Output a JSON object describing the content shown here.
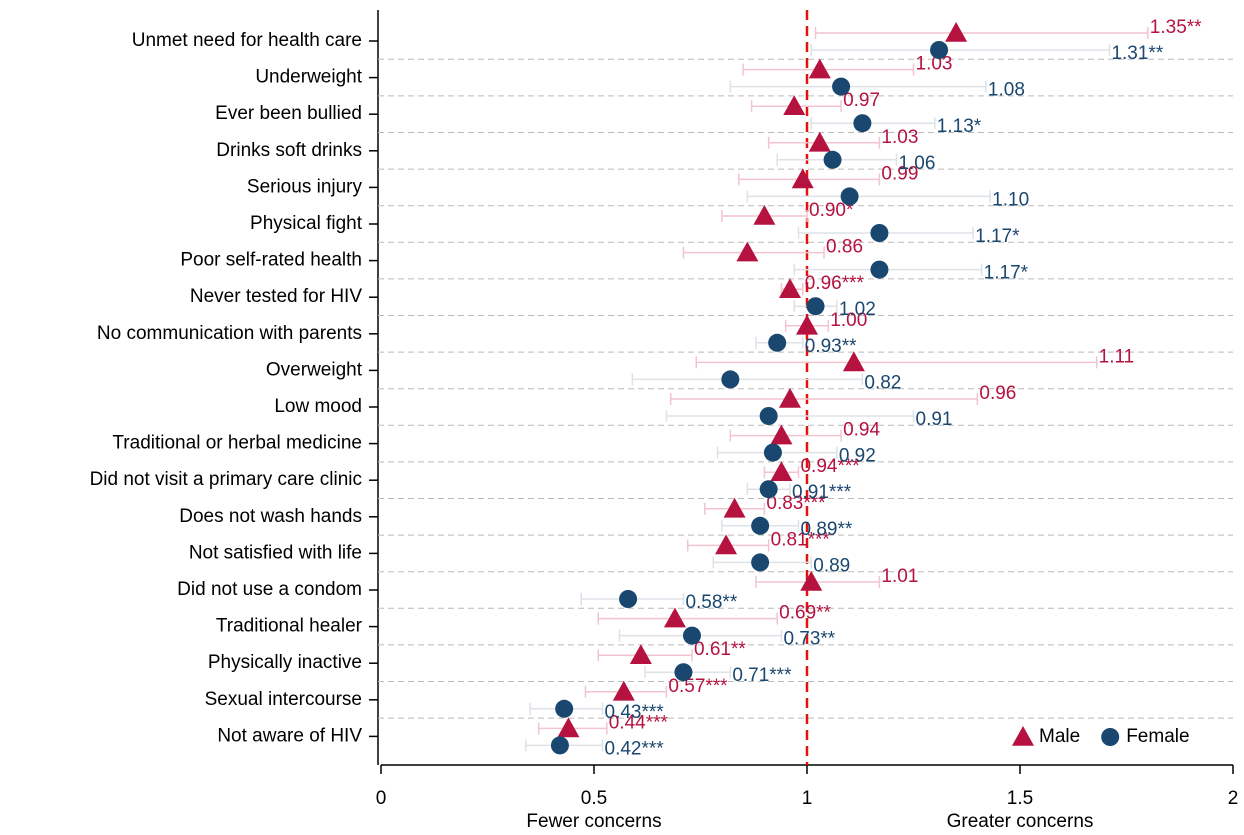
{
  "chart_data": {
    "type": "forest",
    "categories": [
      "Unmet need for health care",
      "Underweight",
      "Ever been bullied",
      "Drinks soft drinks",
      "Serious injury",
      "Physical fight",
      "Poor self-rated health",
      "Never tested for HIV",
      "No communication with parents",
      "Overweight",
      "Low mood",
      "Traditional or herbal medicine",
      "Did not visit a primary care clinic",
      "Does not wash hands",
      "Not satisfied with life",
      "Did not use a condom",
      "Traditional healer",
      "Physically inactive",
      "Sexual intercourse",
      "Not aware of HIV"
    ],
    "series": [
      {
        "name": "Male",
        "color": "#b5123f",
        "ci_color": "#f2c4cf",
        "marker": "triangle",
        "values": [
          1.35,
          1.03,
          0.97,
          1.03,
          0.99,
          0.9,
          0.86,
          0.96,
          1.0,
          1.11,
          0.96,
          0.94,
          0.94,
          0.83,
          0.81,
          1.01,
          0.69,
          0.61,
          0.57,
          0.44
        ],
        "value_labels": [
          "1.35**",
          "1.03",
          "0.97",
          "1.03",
          "0.99",
          "0.90*",
          "0.86",
          "0.96***",
          "1.00",
          "1.11",
          "0.96",
          "0.94",
          "0.94***",
          "0.83***",
          "0.81***",
          "1.01",
          "0.69**",
          "0.61**",
          "0.57***",
          "0.44***"
        ],
        "ci": [
          [
            1.02,
            1.8
          ],
          [
            0.85,
            1.25
          ],
          [
            0.87,
            1.08
          ],
          [
            0.91,
            1.17
          ],
          [
            0.84,
            1.17
          ],
          [
            0.8,
            1.0
          ],
          [
            0.71,
            1.04
          ],
          [
            0.94,
            0.99
          ],
          [
            0.95,
            1.05
          ],
          [
            0.74,
            1.68
          ],
          [
            0.68,
            1.4
          ],
          [
            0.82,
            1.08
          ],
          [
            0.9,
            0.98
          ],
          [
            0.76,
            0.9
          ],
          [
            0.72,
            0.91
          ],
          [
            0.88,
            1.17
          ],
          [
            0.51,
            0.93
          ],
          [
            0.51,
            0.73
          ],
          [
            0.48,
            0.67
          ],
          [
            0.37,
            0.53
          ]
        ]
      },
      {
        "name": "Female",
        "color": "#1a476f",
        "ci_color": "#dde2e8",
        "marker": "circle",
        "values": [
          1.31,
          1.08,
          1.13,
          1.06,
          1.1,
          1.17,
          1.17,
          1.02,
          0.93,
          0.82,
          0.91,
          0.92,
          0.91,
          0.89,
          0.89,
          0.58,
          0.73,
          0.71,
          0.43,
          0.42
        ],
        "value_labels": [
          "1.31**",
          "1.08",
          "1.13*",
          "1.06",
          "1.10",
          "1.17*",
          "1.17*",
          "1.02",
          "0.93**",
          "0.82",
          "0.91",
          "0.92",
          "0.91***",
          "0.89**",
          "0.89",
          "0.58**",
          "0.73**",
          "0.71***",
          "0.43***",
          "0.42***"
        ],
        "ci": [
          [
            1.01,
            1.71
          ],
          [
            0.82,
            1.42
          ],
          [
            1.01,
            1.3
          ],
          [
            0.93,
            1.21
          ],
          [
            0.86,
            1.43
          ],
          [
            0.98,
            1.39
          ],
          [
            0.97,
            1.41
          ],
          [
            0.97,
            1.07
          ],
          [
            0.88,
            0.99
          ],
          [
            0.59,
            1.13
          ],
          [
            0.67,
            1.25
          ],
          [
            0.79,
            1.07
          ],
          [
            0.86,
            0.96
          ],
          [
            0.8,
            0.98
          ],
          [
            0.78,
            1.01
          ],
          [
            0.47,
            0.71
          ],
          [
            0.56,
            0.94
          ],
          [
            0.62,
            0.82
          ],
          [
            0.35,
            0.52
          ],
          [
            0.34,
            0.52
          ]
        ]
      }
    ],
    "xlim": [
      0,
      2
    ],
    "xticks": [
      0,
      0.5,
      1,
      1.5,
      2
    ],
    "refline": 1,
    "refline_color": "#e3120b",
    "xlabel_left": "Fewer concerns",
    "xlabel_right": "Greater concerns",
    "legend": "lower right"
  }
}
